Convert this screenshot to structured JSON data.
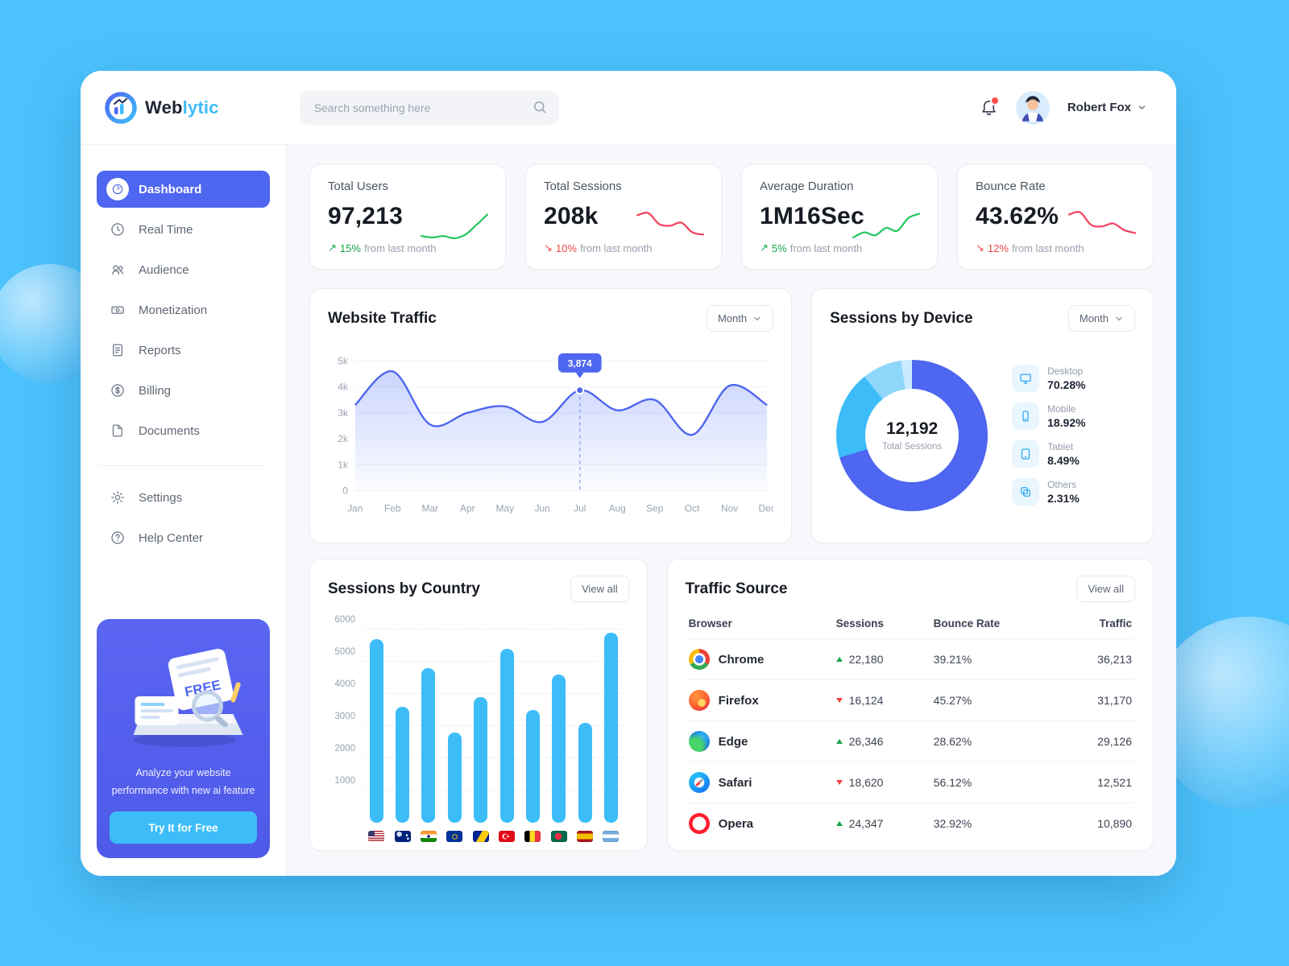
{
  "brand": {
    "name_primary": "Web",
    "name_accent": "lytic"
  },
  "colors": {
    "primary": "#4e66f0",
    "accent_sky": "#3dbdf8",
    "positive": "#16a34a",
    "negative": "#ef4444"
  },
  "header": {
    "search_placeholder": "Search something here",
    "user_name": "Robert Fox"
  },
  "sidebar": {
    "items": [
      {
        "label": "Dashboard",
        "icon": "gauge-icon",
        "active": true
      },
      {
        "label": "Real Time",
        "icon": "clock-icon",
        "active": false
      },
      {
        "label": "Audience",
        "icon": "users-icon",
        "active": false
      },
      {
        "label": "Monetization",
        "icon": "banknote-icon",
        "active": false
      },
      {
        "label": "Reports",
        "icon": "report-icon",
        "active": false
      },
      {
        "label": "Billing",
        "icon": "dollar-icon",
        "active": false
      },
      {
        "label": "Documents",
        "icon": "file-icon",
        "active": false
      }
    ],
    "secondary_items": [
      {
        "label": "Settings",
        "icon": "gear-icon"
      },
      {
        "label": "Help Center",
        "icon": "help-icon"
      }
    ],
    "promo": {
      "illustration_text": "FREE",
      "message_line1": "Analyze your website",
      "message_line2": "performance with new ai feature",
      "button_label": "Try It for Free"
    }
  },
  "stats": [
    {
      "title": "Total Users",
      "value": "97,213",
      "direction": "up",
      "change": "15%",
      "change_suffix": "from last month",
      "spark": [
        30,
        26,
        30,
        24,
        34,
        60,
        88
      ]
    },
    {
      "title": "Total Sessions",
      "value": "208k",
      "direction": "down",
      "change": "10%",
      "change_suffix": "from last month",
      "spark": [
        86,
        92,
        62,
        58,
        66,
        40,
        34
      ]
    },
    {
      "title": "Average Duration",
      "value": "1M16Sec",
      "direction": "up",
      "change": "5%",
      "change_suffix": "from last month",
      "spark": [
        26,
        40,
        32,
        52,
        44,
        78,
        90
      ]
    },
    {
      "title": "Bounce Rate",
      "value": "43.62%",
      "direction": "down",
      "change": "12%",
      "change_suffix": "from last month",
      "spark": [
        88,
        94,
        60,
        56,
        64,
        46,
        38
      ]
    }
  ],
  "chart_data": [
    {
      "id": "website_traffic",
      "type": "area",
      "title": "Website Traffic",
      "period_selector": "Month",
      "x": [
        "Jan",
        "Feb",
        "Mar",
        "Apr",
        "May",
        "Jun",
        "Jul",
        "Aug",
        "Sep",
        "Oct",
        "Nov",
        "Dec"
      ],
      "values": [
        3300,
        4600,
        2550,
        3000,
        3250,
        2650,
        3874,
        3100,
        3500,
        2150,
        4050,
        3300
      ],
      "ylim": [
        0,
        5000
      ],
      "yticks": [
        "0",
        "1k",
        "2k",
        "3k",
        "4k",
        "5k"
      ],
      "highlight": {
        "x": "Jul",
        "index": 6,
        "label": "3,874"
      }
    },
    {
      "id": "sessions_by_device",
      "type": "pie",
      "title": "Sessions by Device",
      "period_selector": "Month",
      "center_value": "12,192",
      "center_label": "Total Sessions",
      "segments": [
        {
          "label": "Desktop",
          "value": 70.28,
          "display": "70.28%",
          "color": "#4e66f0",
          "icon": "desktop-icon"
        },
        {
          "label": "Mobile",
          "value": 18.92,
          "display": "18.92%",
          "color": "#3dbdf8",
          "icon": "mobile-icon"
        },
        {
          "label": "Tablet",
          "value": 8.49,
          "display": "8.49%",
          "color": "#8fd6fb",
          "icon": "tablet-icon"
        },
        {
          "label": "Others",
          "value": 2.31,
          "display": "2.31%",
          "color": "#c9ebfe",
          "icon": "layers-icon"
        }
      ]
    },
    {
      "id": "sessions_by_country",
      "type": "bar",
      "title": "Sessions by Country",
      "action_label": "View all",
      "categories": [
        {
          "name": "United States",
          "flag": "us"
        },
        {
          "name": "New Zealand",
          "flag": "nz"
        },
        {
          "name": "India",
          "flag": "in"
        },
        {
          "name": "European Union",
          "flag": "eu"
        },
        {
          "name": "Bosnia and Herzegovina",
          "flag": "ba"
        },
        {
          "name": "Turkey",
          "flag": "tr"
        },
        {
          "name": "Belgium",
          "flag": "be"
        },
        {
          "name": "Bangladesh",
          "flag": "bd"
        },
        {
          "name": "Spain",
          "flag": "es"
        },
        {
          "name": "Argentina",
          "flag": "ar"
        }
      ],
      "values": [
        5700,
        3600,
        4800,
        2800,
        3900,
        5400,
        3500,
        4600,
        3100,
        5900
      ],
      "ylim": [
        0,
        6000
      ],
      "yticks": [
        "1000",
        "2000",
        "3000",
        "4000",
        "5000",
        "6000"
      ],
      "bar_color": "#3dbdf8"
    },
    {
      "id": "traffic_source",
      "type": "table",
      "title": "Traffic Source",
      "action_label": "View all",
      "columns": [
        "Browser",
        "Sessions",
        "Bounce Rate",
        "Traffic"
      ],
      "rows": [
        {
          "browser": "Chrome",
          "icon": "chrome-icon",
          "trend": "up",
          "sessions": "22,180",
          "bounce_rate": "39.21%",
          "traffic": "36,213"
        },
        {
          "browser": "Firefox",
          "icon": "firefox-icon",
          "trend": "down",
          "sessions": "16,124",
          "bounce_rate": "45.27%",
          "traffic": "31,170"
        },
        {
          "browser": "Edge",
          "icon": "edge-icon",
          "trend": "up",
          "sessions": "26,346",
          "bounce_rate": "28.62%",
          "traffic": "29,126"
        },
        {
          "browser": "Safari",
          "icon": "safari-icon",
          "trend": "down",
          "sessions": "18,620",
          "bounce_rate": "56.12%",
          "traffic": "12,521"
        },
        {
          "browser": "Opera",
          "icon": "opera-icon",
          "trend": "up",
          "sessions": "24,347",
          "bounce_rate": "32.92%",
          "traffic": "10,890"
        }
      ]
    }
  ]
}
